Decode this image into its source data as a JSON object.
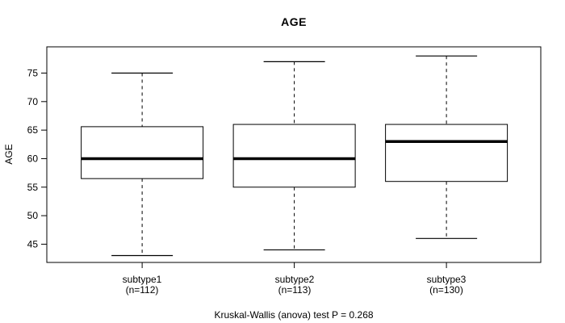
{
  "chart_data": {
    "type": "boxplot",
    "title": "AGE",
    "ylabel": "AGE",
    "xlabel": "",
    "caption": "Kruskal-Wallis (anova) test P = 0.268",
    "yticks": [
      45,
      50,
      55,
      60,
      65,
      70,
      75
    ],
    "ylim": [
      41.8,
      79.6
    ],
    "grid": false,
    "groups": [
      {
        "label": "subtype1",
        "sublabel": "(n=112)",
        "n": 112,
        "whisker_low": 43,
        "q1": 56.5,
        "median": 60,
        "q3": 65.6,
        "whisker_high": 75
      },
      {
        "label": "subtype2",
        "sublabel": "(n=113)",
        "n": 113,
        "whisker_low": 44,
        "q1": 55,
        "median": 60,
        "q3": 66,
        "whisker_high": 77
      },
      {
        "label": "subtype3",
        "sublabel": "(n=130)",
        "n": 130,
        "whisker_low": 46,
        "q1": 56,
        "median": 63,
        "q3": 66,
        "whisker_high": 78
      }
    ],
    "colors": {
      "line": "#000000",
      "box_fill": "#ffffff",
      "text": "#000000",
      "background": "#ffffff"
    }
  }
}
